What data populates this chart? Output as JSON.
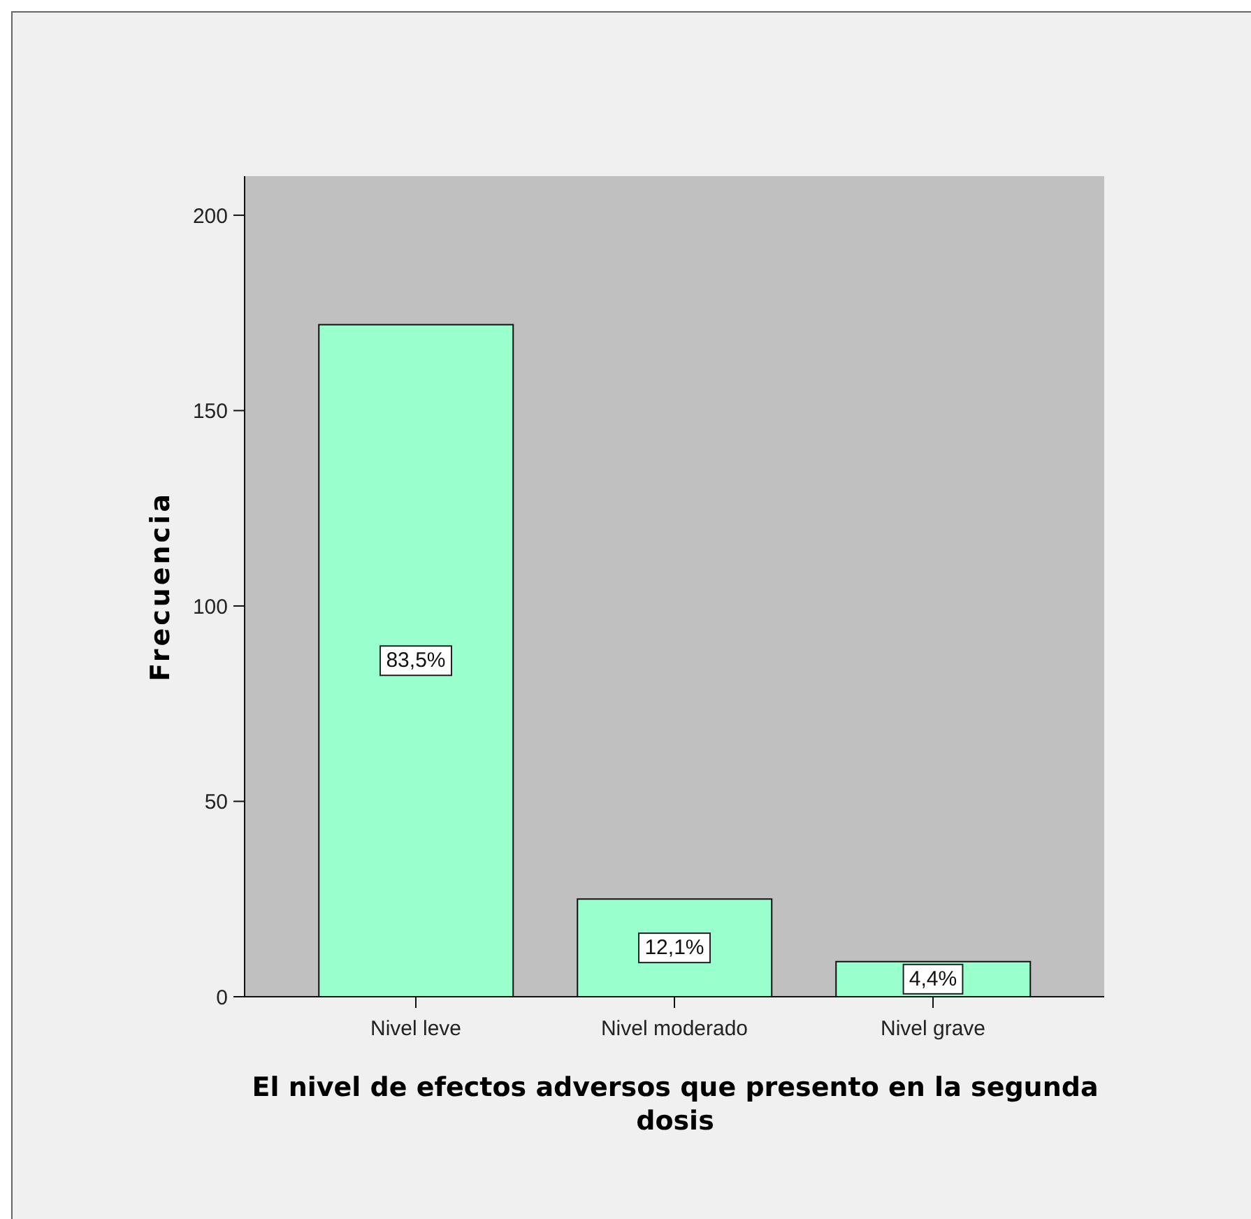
{
  "chart_data": {
    "type": "bar",
    "xlabel": "El nivel de efectos adversos que presento en la segunda dosis",
    "ylabel": "Frecuencia",
    "categories": [
      "Nivel leve",
      "Nivel moderado",
      "Nivel grave"
    ],
    "values": [
      172,
      25,
      9
    ],
    "color": "#99ffcc",
    "ylim": [
      0,
      210
    ],
    "yticks": [
      0,
      50,
      100,
      150,
      200
    ],
    "annotations": [
      "83,5%",
      "12,1%",
      "4,4%"
    ]
  }
}
